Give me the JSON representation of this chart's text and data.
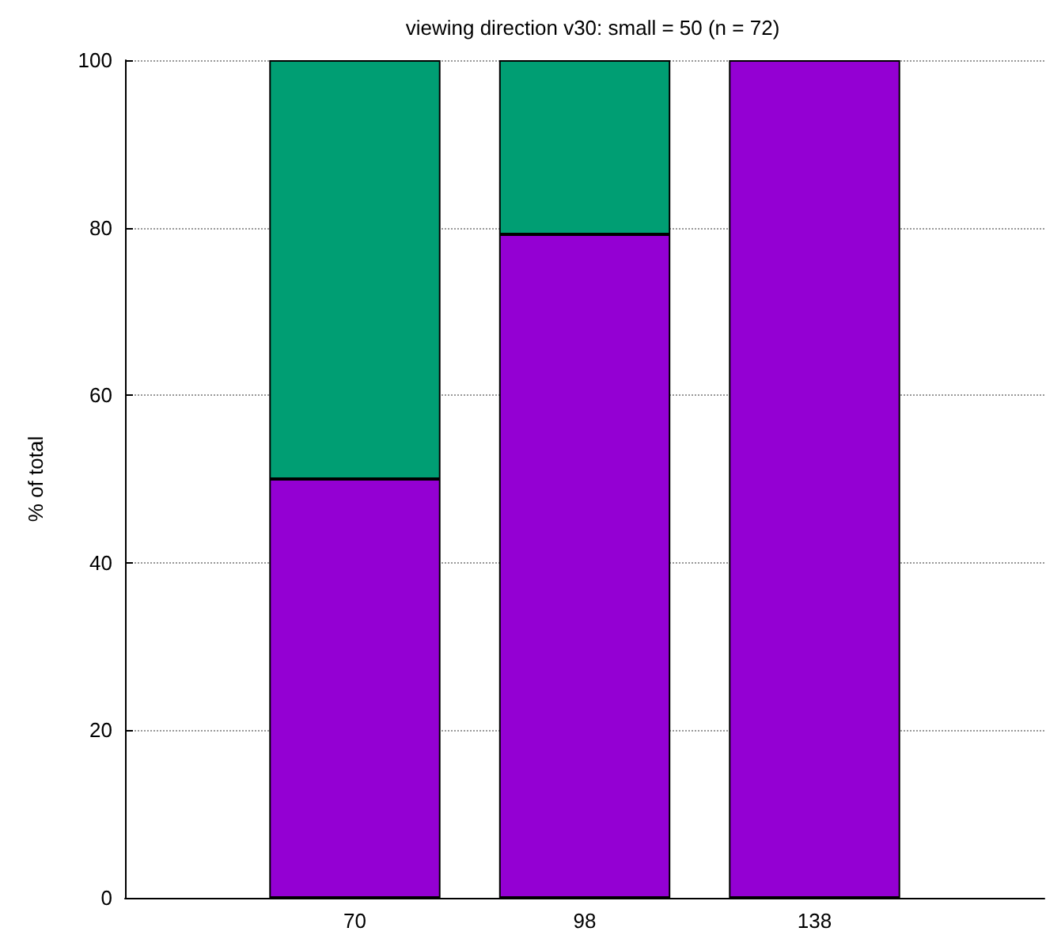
{
  "chart_data": {
    "type": "bar",
    "title": "viewing direction v30: small = 50 (n = 72)",
    "ylabel": "% of total",
    "categories": [
      "70",
      "98",
      "138"
    ],
    "stacked": true,
    "series": [
      {
        "color": "#9400d3",
        "values": [
          50,
          79.2,
          100
        ]
      },
      {
        "color": "#009e73",
        "values": [
          50,
          20.8,
          null
        ]
      }
    ],
    "ylim": [
      0,
      100
    ],
    "yticks": [
      0,
      20,
      40,
      60,
      80,
      100
    ],
    "grid": "y"
  }
}
